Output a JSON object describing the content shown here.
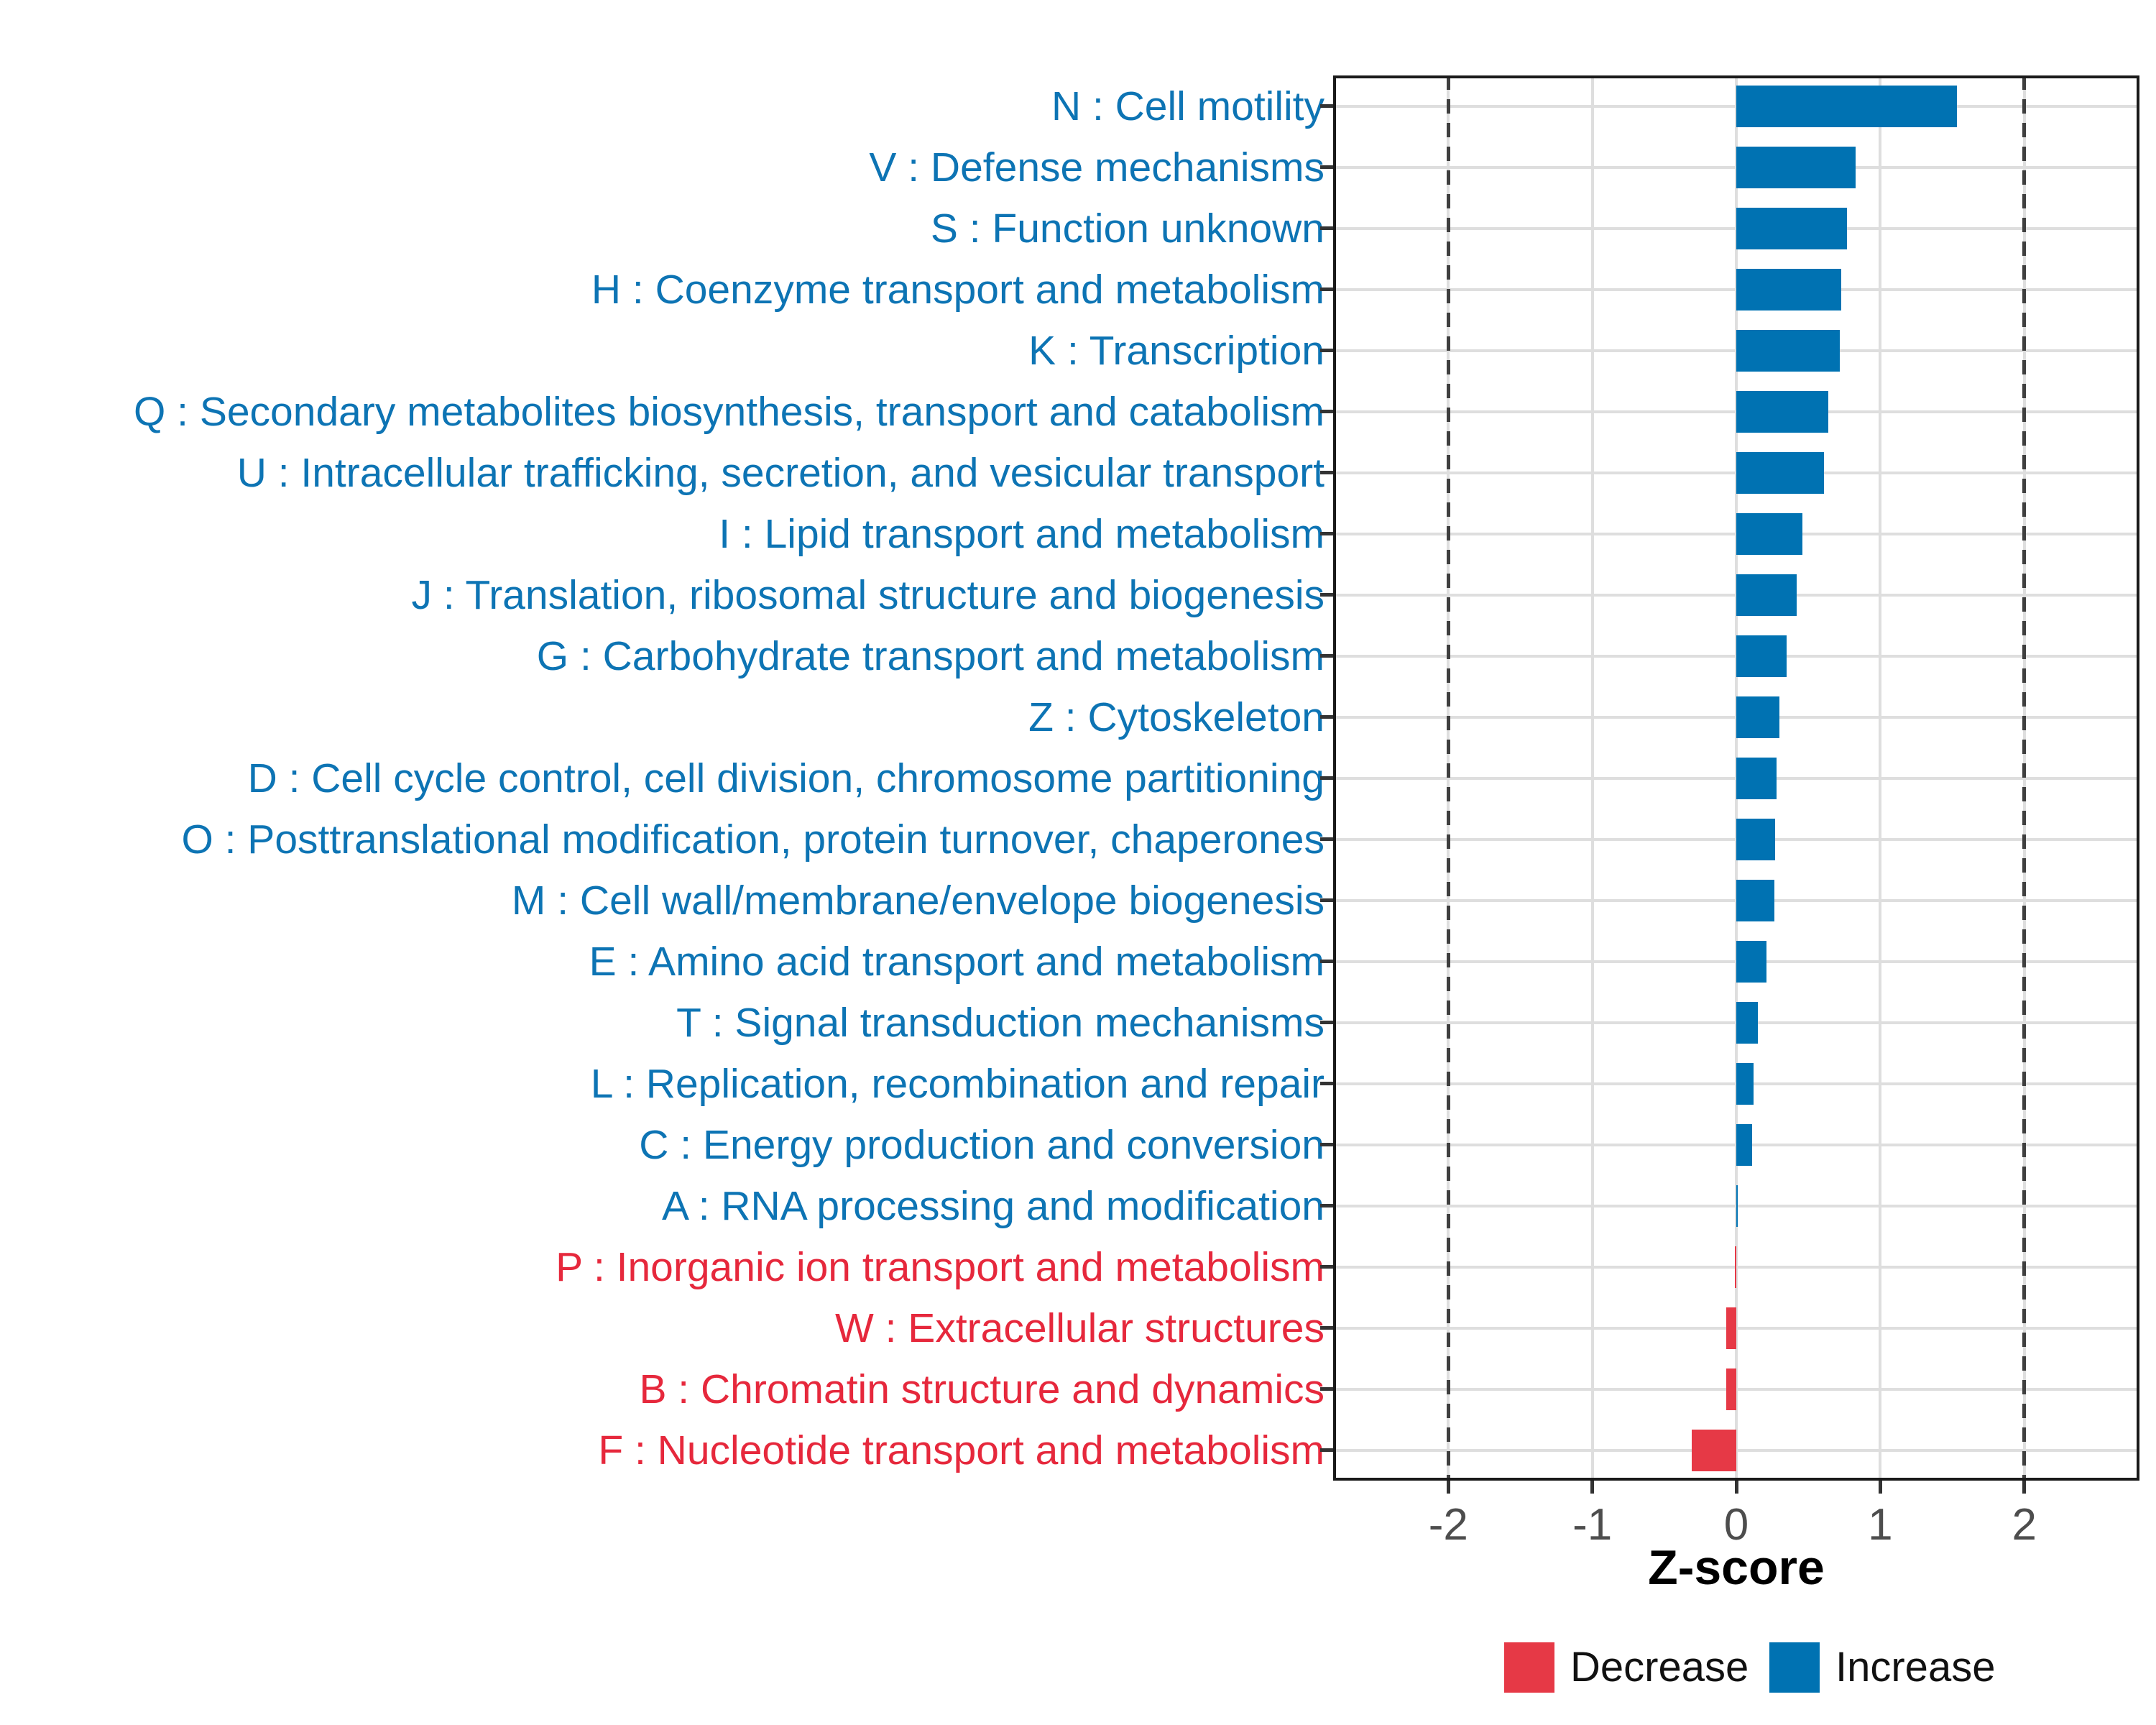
{
  "chart_data": {
    "type": "bar",
    "orientation": "horizontal",
    "title": "",
    "xlabel": "Z-score",
    "ylabel": "",
    "xlim": [
      -2.8,
      2.8
    ],
    "x_ticks": [
      "-2",
      "-1",
      "0",
      "1",
      "2"
    ],
    "x_tick_values": [
      -2,
      -1,
      0,
      1,
      2
    ],
    "grid": "major-only",
    "reference_lines": {
      "values": [
        -2,
        2
      ],
      "style": "dashed",
      "color": "#3f3f3f"
    },
    "legend_position": "bottom",
    "legend": [
      {
        "label": "Decrease",
        "color": "#e63946"
      },
      {
        "label": "Increase",
        "color": "#0072b2"
      }
    ],
    "colors": {
      "increase": "#0072b2",
      "decrease": "#e63946",
      "label_increase": "#0d74b4",
      "label_decrease": "#e6283c",
      "gridline": "#dedede",
      "axis_text": "#4d4d4d",
      "panel_border": "#1a1a1a"
    },
    "categories": [
      {
        "label": "N : Cell motility",
        "value": 1.53,
        "direction": "increase"
      },
      {
        "label": "V : Defense mechanisms",
        "value": 0.83,
        "direction": "increase"
      },
      {
        "label": "S : Function unknown",
        "value": 0.77,
        "direction": "increase"
      },
      {
        "label": "H : Coenzyme transport and metabolism",
        "value": 0.73,
        "direction": "increase"
      },
      {
        "label": "K : Transcription",
        "value": 0.72,
        "direction": "increase"
      },
      {
        "label": "Q : Secondary metabolites biosynthesis, transport and catabolism",
        "value": 0.64,
        "direction": "increase"
      },
      {
        "label": "U : Intracellular trafficking, secretion, and vesicular transport",
        "value": 0.61,
        "direction": "increase"
      },
      {
        "label": "I : Lipid transport and metabolism",
        "value": 0.46,
        "direction": "increase"
      },
      {
        "label": "J : Translation, ribosomal structure and biogenesis",
        "value": 0.42,
        "direction": "increase"
      },
      {
        "label": "G : Carbohydrate transport and metabolism",
        "value": 0.35,
        "direction": "increase"
      },
      {
        "label": "Z : Cytoskeleton",
        "value": 0.3,
        "direction": "increase"
      },
      {
        "label": "D : Cell cycle control, cell division, chromosome partitioning",
        "value": 0.28,
        "direction": "increase"
      },
      {
        "label": "O : Posttranslational modification, protein turnover, chaperones",
        "value": 0.27,
        "direction": "increase"
      },
      {
        "label": "M : Cell wall/membrane/envelope biogenesis",
        "value": 0.265,
        "direction": "increase"
      },
      {
        "label": "E : Amino acid transport and metabolism",
        "value": 0.21,
        "direction": "increase"
      },
      {
        "label": "T : Signal transduction mechanisms",
        "value": 0.15,
        "direction": "increase"
      },
      {
        "label": "L : Replication, recombination and repair",
        "value": 0.12,
        "direction": "increase"
      },
      {
        "label": "C : Energy production and conversion",
        "value": 0.11,
        "direction": "increase"
      },
      {
        "label": "A : RNA processing and modification",
        "value": 0.01,
        "direction": "increase"
      },
      {
        "label": "P : Inorganic ion transport and metabolism",
        "value": -0.01,
        "direction": "decrease"
      },
      {
        "label": "W : Extracellular structures",
        "value": -0.07,
        "direction": "decrease"
      },
      {
        "label": "B : Chromatin structure and dynamics",
        "value": -0.07,
        "direction": "decrease"
      },
      {
        "label": "F : Nucleotide transport and metabolism",
        "value": -0.31,
        "direction": "decrease"
      }
    ]
  }
}
